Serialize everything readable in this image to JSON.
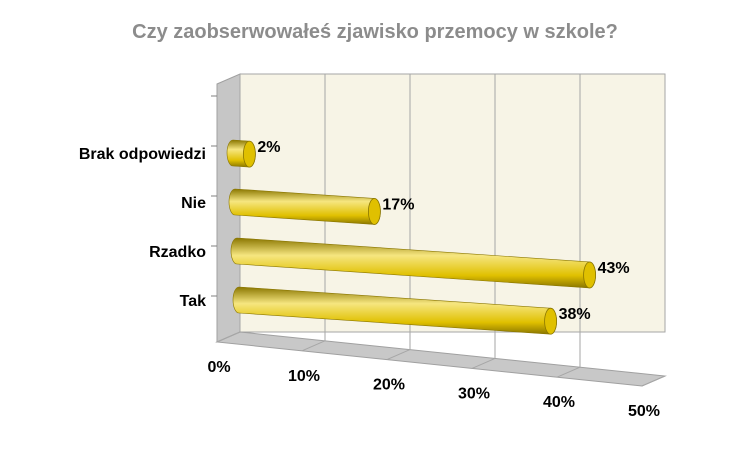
{
  "chart_data": {
    "type": "bar",
    "orientation": "horizontal",
    "style": "3d-cylinder",
    "title": "Czy zaobserwowałeś zjawisko przemocy w szkole?",
    "categories": [
      "Tak",
      "Rzadko",
      "Nie",
      "Brak odpowiedzi"
    ],
    "values": [
      38,
      43,
      17,
      2
    ],
    "value_unit": "%",
    "data_labels": [
      "38%",
      "43%",
      "17%",
      "2%"
    ],
    "x_ticks": [
      "0%",
      "10%",
      "20%",
      "30%",
      "40%",
      "50%"
    ],
    "xlim": [
      0,
      50
    ],
    "grid": true,
    "legend": "none",
    "colors": {
      "bar": "#e0c000",
      "bar_light": "#f6e680",
      "bar_dark": "#8a7600",
      "back_wall": "#f7f4e6",
      "side_wall": "#c6c6c6",
      "floor": "#c8c8c8",
      "grid": "#a6a6a6",
      "title": "#8c8c8c"
    }
  }
}
